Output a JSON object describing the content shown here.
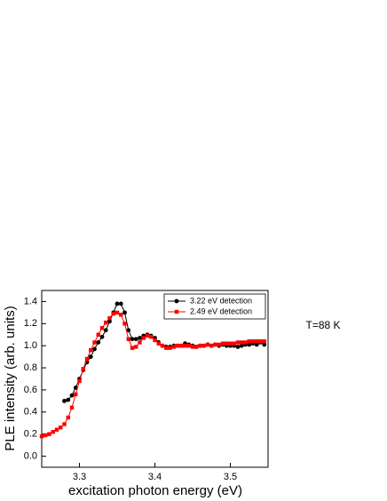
{
  "chart_data": {
    "type": "line",
    "x_label": "excitation photon energy (eV)",
    "y_label": "PLE intensity (arb. units)",
    "annotation": "T=88 K",
    "xlim": [
      3.25,
      3.55
    ],
    "xticks": [
      3.3,
      3.4,
      3.5
    ],
    "ylim": [
      -0.1,
      1.5
    ],
    "yticks": [
      {
        "value": 0,
        "label": "0.0"
      },
      {
        "value": 0.2,
        "label": "0.2"
      },
      {
        "value": 0.4,
        "label": "0.4"
      },
      {
        "value": 0.6,
        "label": "0.6"
      },
      {
        "value": 0.8,
        "label": "0.8"
      },
      {
        "value": 1,
        "label": "1.0"
      },
      {
        "value": 1.2,
        "label": "1.2"
      },
      {
        "value": 1.4,
        "label": "1.4"
      }
    ],
    "legend": "top-right",
    "series": [
      {
        "name": "3.22 eV detection",
        "color": "#000000",
        "marker": "circle",
        "x": [
          3.28,
          3.285,
          3.29,
          3.295,
          3.3,
          3.305,
          3.31,
          3.315,
          3.32,
          3.325,
          3.33,
          3.335,
          3.34,
          3.345,
          3.35,
          3.355,
          3.36,
          3.365,
          3.37,
          3.375,
          3.38,
          3.385,
          3.39,
          3.395,
          3.4,
          3.405,
          3.41,
          3.415,
          3.42,
          3.425,
          3.43,
          3.435,
          3.44,
          3.445,
          3.45,
          3.455,
          3.46,
          3.465,
          3.47,
          3.475,
          3.48,
          3.485,
          3.49,
          3.495,
          3.5,
          3.505,
          3.51,
          3.515,
          3.52,
          3.525,
          3.53,
          3.535,
          3.54,
          3.545
        ],
        "values": [
          0.5,
          0.51,
          0.55,
          0.62,
          0.7,
          0.78,
          0.85,
          0.9,
          0.97,
          1.03,
          1.08,
          1.14,
          1.22,
          1.3,
          1.38,
          1.38,
          1.3,
          1.14,
          1.06,
          1.06,
          1.07,
          1.09,
          1.1,
          1.09,
          1.07,
          1.03,
          1.0,
          0.99,
          0.99,
          1.0,
          1.0,
          1.0,
          1.02,
          1.01,
          1.0,
          0.99,
          1.0,
          1.0,
          1.01,
          1.0,
          1.01,
          1.0,
          1.01,
          1.0,
          1.0,
          1.0,
          0.99,
          1.0,
          1.01,
          1.01,
          1.02,
          1.01,
          1.03,
          1.01
        ]
      },
      {
        "name": "2.49 eV detection",
        "color": "#ff0000",
        "marker": "square",
        "x": [
          3.25,
          3.255,
          3.26,
          3.265,
          3.27,
          3.275,
          3.28,
          3.285,
          3.29,
          3.295,
          3.3,
          3.305,
          3.31,
          3.315,
          3.32,
          3.325,
          3.33,
          3.335,
          3.34,
          3.345,
          3.35,
          3.355,
          3.36,
          3.365,
          3.37,
          3.375,
          3.38,
          3.385,
          3.39,
          3.395,
          3.4,
          3.405,
          3.41,
          3.415,
          3.42,
          3.425,
          3.43,
          3.435,
          3.44,
          3.445,
          3.45,
          3.455,
          3.46,
          3.465,
          3.47,
          3.475,
          3.48,
          3.485,
          3.49,
          3.495,
          3.5,
          3.505,
          3.51,
          3.515,
          3.52,
          3.525,
          3.53,
          3.535,
          3.54,
          3.545
        ],
        "values": [
          0.18,
          0.19,
          0.2,
          0.22,
          0.24,
          0.26,
          0.29,
          0.35,
          0.44,
          0.56,
          0.68,
          0.79,
          0.88,
          0.96,
          1.03,
          1.1,
          1.16,
          1.21,
          1.25,
          1.29,
          1.3,
          1.28,
          1.2,
          1.06,
          0.98,
          0.99,
          1.03,
          1.07,
          1.09,
          1.08,
          1.05,
          1.02,
          1.0,
          0.98,
          0.98,
          0.99,
          1.0,
          1.0,
          1.0,
          1.0,
          0.99,
          0.99,
          1.0,
          1.0,
          1.01,
          1.0,
          1.01,
          1.01,
          1.02,
          1.02,
          1.02,
          1.02,
          1.03,
          1.03,
          1.03,
          1.04,
          1.04,
          1.04,
          1.04,
          1.04
        ]
      }
    ]
  }
}
